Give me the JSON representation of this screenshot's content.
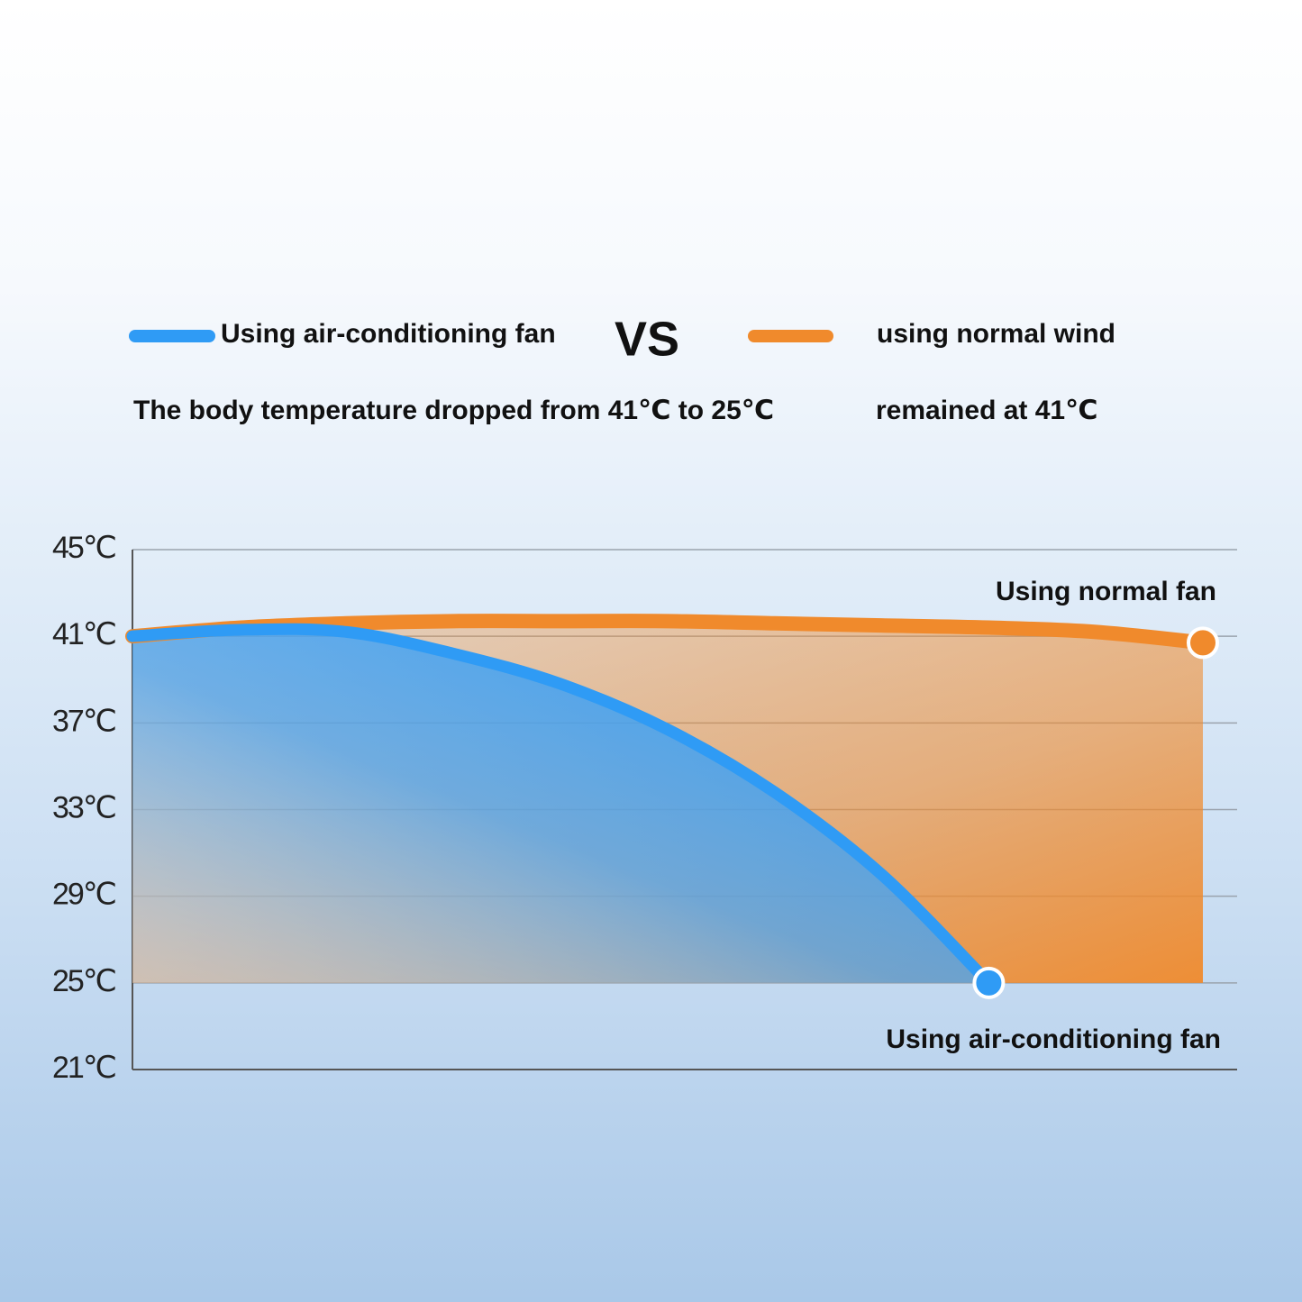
{
  "chart_data": {
    "type": "area",
    "legend_separator": "VS",
    "subtitles": [
      "The body temperature dropped from 41℃ to 25℃",
      "remained at 41℃"
    ],
    "annotations": [
      "Using normal fan",
      "Using air-conditioning fan"
    ],
    "categories": [
      null,
      null,
      null,
      null,
      null,
      null,
      null,
      null,
      null,
      null,
      null
    ],
    "series": [
      {
        "name": "Using air-conditioning fan",
        "color": "#2f9bf5",
        "values": [
          41,
          41.3,
          41.2,
          40.2,
          38.8,
          36.7,
          33.8,
          30.0,
          25,
          null,
          null
        ]
      },
      {
        "name": "using normal wind",
        "color": "#f08a2c",
        "values": [
          41,
          41.4,
          41.6,
          41.7,
          41.7,
          41.7,
          41.6,
          41.5,
          41.4,
          41.2,
          40.7
        ]
      }
    ],
    "ylim": [
      21,
      45
    ],
    "yticks": [
      {
        "value": 45,
        "label": "45℃"
      },
      {
        "value": 41,
        "label": "41℃"
      },
      {
        "value": 37,
        "label": "37℃"
      },
      {
        "value": 33,
        "label": "33℃"
      },
      {
        "value": 29,
        "label": "29℃"
      },
      {
        "value": 25,
        "label": "25℃"
      },
      {
        "value": 21,
        "label": "21℃"
      }
    ],
    "grid": true
  }
}
